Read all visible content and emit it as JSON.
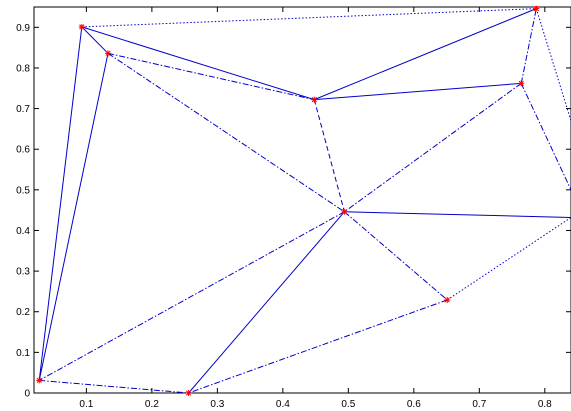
{
  "chart_data": {
    "type": "scatter",
    "title": "",
    "xlabel": "",
    "ylabel": "",
    "xlim": [
      0.02,
      0.84
    ],
    "ylim": [
      0,
      0.95
    ],
    "grid": false,
    "legend": "none",
    "x_ticks": [
      "0.1",
      "0.2",
      "0.3",
      "0.4",
      "0.5",
      "0.6",
      "0.7",
      "0.8"
    ],
    "y_ticks": [
      "0",
      "0.1",
      "0.2",
      "0.3",
      "0.4",
      "0.5",
      "0.6",
      "0.7",
      "0.8",
      "0.9"
    ],
    "x_tick_values": [
      0.1,
      0.2,
      0.3,
      0.4,
      0.5,
      0.6,
      0.7,
      0.8
    ],
    "y_tick_values": [
      0,
      0.1,
      0.2,
      0.3,
      0.4,
      0.5,
      0.6,
      0.7,
      0.8,
      0.9
    ],
    "points": [
      {
        "x": 0.093,
        "y": 0.901
      },
      {
        "x": 0.133,
        "y": 0.836
      },
      {
        "x": 0.448,
        "y": 0.722
      },
      {
        "x": 0.764,
        "y": 0.762
      },
      {
        "x": 0.787,
        "y": 0.946
      },
      {
        "x": 0.494,
        "y": 0.446
      },
      {
        "x": 0.651,
        "y": 0.229
      },
      {
        "x": 0.028,
        "y": 0.031
      },
      {
        "x": 0.256,
        "y": 0.0
      }
    ],
    "edges": [
      {
        "from": [
          0.093,
          0.901
        ],
        "to": [
          0.787,
          0.946
        ],
        "style": "dotted"
      },
      {
        "from": [
          0.093,
          0.901
        ],
        "to": [
          0.133,
          0.836
        ],
        "style": "solid"
      },
      {
        "from": [
          0.093,
          0.901
        ],
        "to": [
          0.448,
          0.722
        ],
        "style": "solid"
      },
      {
        "from": [
          0.093,
          0.901
        ],
        "to": [
          0.028,
          0.031
        ],
        "style": "solid"
      },
      {
        "from": [
          0.133,
          0.836
        ],
        "to": [
          0.028,
          0.031
        ],
        "style": "solid"
      },
      {
        "from": [
          0.133,
          0.836
        ],
        "to": [
          0.448,
          0.722
        ],
        "style": "dashdot"
      },
      {
        "from": [
          0.133,
          0.836
        ],
        "to": [
          0.494,
          0.446
        ],
        "style": "dashdot"
      },
      {
        "from": [
          0.448,
          0.722
        ],
        "to": [
          0.787,
          0.946
        ],
        "style": "solid"
      },
      {
        "from": [
          0.448,
          0.722
        ],
        "to": [
          0.764,
          0.762
        ],
        "style": "solid"
      },
      {
        "from": [
          0.448,
          0.722
        ],
        "to": [
          0.494,
          0.446
        ],
        "style": "dashed"
      },
      {
        "from": [
          0.764,
          0.762
        ],
        "to": [
          0.787,
          0.946
        ],
        "style": "dashdot"
      },
      {
        "from": [
          0.764,
          0.762
        ],
        "to": [
          0.494,
          0.446
        ],
        "style": "dashdot"
      },
      {
        "from": [
          0.764,
          0.762
        ],
        "to": [
          0.84,
          0.5
        ],
        "style": "dashdot"
      },
      {
        "from": [
          0.787,
          0.946
        ],
        "to": [
          0.84,
          0.67
        ],
        "style": "dotted"
      },
      {
        "from": [
          0.494,
          0.446
        ],
        "to": [
          0.84,
          0.432
        ],
        "style": "solid"
      },
      {
        "from": [
          0.494,
          0.446
        ],
        "to": [
          0.651,
          0.229
        ],
        "style": "dashdot"
      },
      {
        "from": [
          0.494,
          0.446
        ],
        "to": [
          0.028,
          0.031
        ],
        "style": "dashdot"
      },
      {
        "from": [
          0.494,
          0.446
        ],
        "to": [
          0.256,
          0.0
        ],
        "style": "solid"
      },
      {
        "from": [
          0.651,
          0.229
        ],
        "to": [
          0.84,
          0.432
        ],
        "style": "dotted"
      },
      {
        "from": [
          0.651,
          0.229
        ],
        "to": [
          0.256,
          0.0
        ],
        "style": "dashdot"
      },
      {
        "from": [
          0.028,
          0.031
        ],
        "to": [
          0.256,
          0.0
        ],
        "style": "dashdot"
      }
    ],
    "colors": {
      "edges": "#0000cc",
      "points": "#ff0000",
      "axes": "#000000"
    }
  }
}
